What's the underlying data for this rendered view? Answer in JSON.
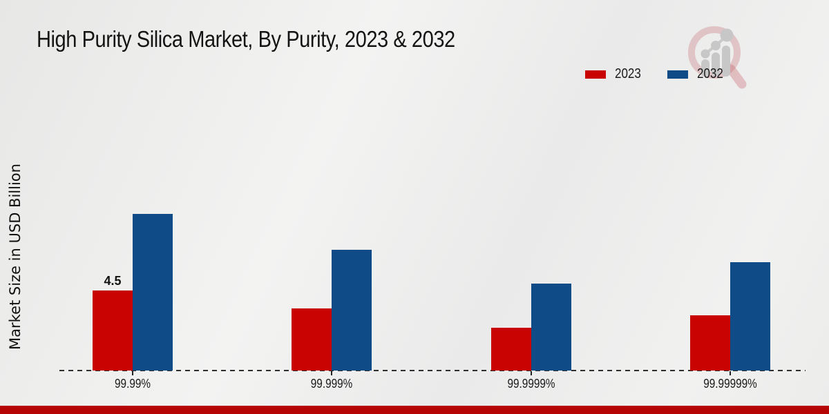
{
  "page": {
    "title": "High Purity Silica Market, By Purity, 2023 & 2032"
  },
  "legend": {
    "items": [
      {
        "label": "2023",
        "color": "#c90202"
      },
      {
        "label": "2032",
        "color": "#0f4c87"
      }
    ]
  },
  "icons": {
    "watermark": "magnifier-growth-chart-logo"
  },
  "chart_data": {
    "type": "bar",
    "title": "High Purity Silica Market, By Purity, 2023 & 2032",
    "ylabel": "Market Size in USD Billion",
    "xlabel": "",
    "categories": [
      "99.99%",
      "99.999%",
      "99.9999%",
      "99.99999%"
    ],
    "series": [
      {
        "name": "2023",
        "color": "#c90202",
        "values": [
          4.5,
          3.5,
          2.4,
          3.1
        ]
      },
      {
        "name": "2032",
        "color": "#0f4c87",
        "values": [
          8.8,
          6.8,
          4.9,
          6.1
        ]
      }
    ],
    "point_labels": [
      {
        "series": 0,
        "index": 0,
        "text": "4.5"
      }
    ],
    "ylim": [
      0,
      10
    ],
    "grid": false,
    "axis_visible": false,
    "baseline_style": "dashed",
    "legend_position": "top-right"
  },
  "footer": {
    "stripe_color": "#b50505"
  }
}
